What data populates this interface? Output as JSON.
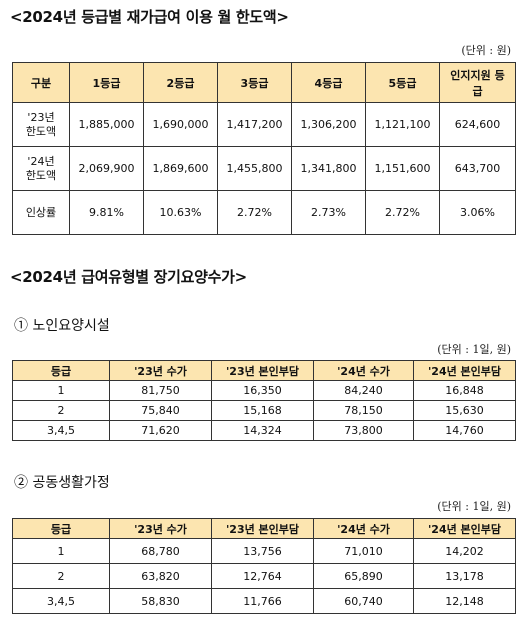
{
  "section1": {
    "title": "<2024년 등급별 재가급여 이용 월 한도액>",
    "unit": "(단위 : 원)",
    "headers": [
      "구분",
      "1등급",
      "2등급",
      "3등급",
      "4등급",
      "5등급",
      "인지지원 등급"
    ],
    "rows": [
      {
        "label": "'23년 한도액",
        "values": [
          "1,885,000",
          "1,690,000",
          "1,417,200",
          "1,306,200",
          "1,121,100",
          "624,600"
        ]
      },
      {
        "label": "'24년 한도액",
        "values": [
          "2,069,900",
          "1,869,600",
          "1,455,800",
          "1,341,800",
          "1,151,600",
          "643,700"
        ]
      },
      {
        "label": "인상률",
        "values": [
          "9.81%",
          "10.63%",
          "2.72%",
          "2.73%",
          "2.72%",
          "3.06%"
        ]
      }
    ]
  },
  "section2": {
    "title": "<2024년 급여유형별 장기요양수가>"
  },
  "table_nursing": {
    "subtitle": "① 노인요양시설",
    "unit": "(단위 : 1일, 원)",
    "headers": [
      "등급",
      "'23년 수가",
      "'23년 본인부담",
      "'24년 수가",
      "'24년 본인부담"
    ],
    "rows": [
      [
        "1",
        "81,750",
        "16,350",
        "84,240",
        "16,848"
      ],
      [
        "2",
        "75,840",
        "15,168",
        "78,150",
        "15,630"
      ],
      [
        "3,4,5",
        "71,620",
        "14,324",
        "73,800",
        "14,760"
      ]
    ]
  },
  "table_group": {
    "subtitle": "② 공동생활가정",
    "unit": "(단위 : 1일, 원)",
    "headers": [
      "등급",
      "'23년 수가",
      "'23년 본인부담",
      "'24년 수가",
      "'24년 본인부담"
    ],
    "rows": [
      [
        "1",
        "68,780",
        "13,756",
        "71,010",
        "14,202"
      ],
      [
        "2",
        "63,820",
        "12,764",
        "65,890",
        "13,178"
      ],
      [
        "3,4,5",
        "58,830",
        "11,766",
        "60,740",
        "12,148"
      ]
    ]
  }
}
